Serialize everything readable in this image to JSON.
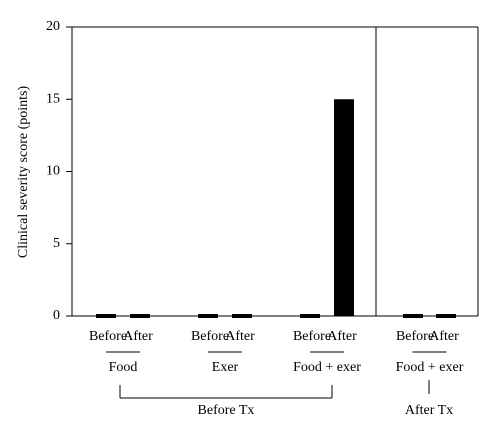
{
  "chart_data": {
    "type": "bar",
    "ylabel": "Clinical severity score (points)",
    "categories": [
      "Before",
      "After",
      "Before",
      "After",
      "Before",
      "After",
      "Before",
      "After"
    ],
    "values": [
      0,
      0,
      0,
      0,
      0,
      15,
      0,
      0
    ],
    "groups": [
      "Food",
      "Exer",
      "Food + exer",
      "Food + exer"
    ],
    "supergroups": [
      "Before Tx",
      "After Tx"
    ],
    "color": "#000000",
    "ylim": [
      0,
      20
    ],
    "yticks": [
      0,
      5,
      10,
      15,
      20
    ]
  }
}
